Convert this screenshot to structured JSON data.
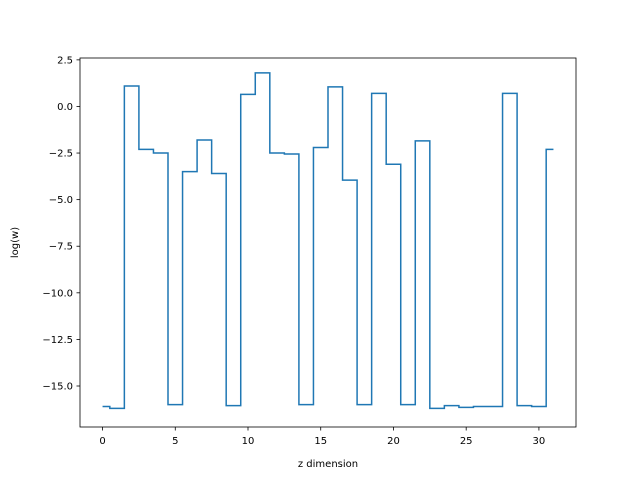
{
  "chart_data": {
    "type": "line",
    "drawstyle": "steps-mid",
    "xlabel": "z dimension",
    "ylabel": "log(w)",
    "xlim": [
      -1.55,
      32.55
    ],
    "ylim": [
      -17.2,
      2.6
    ],
    "xticks": [
      0,
      5,
      10,
      15,
      20,
      25,
      30
    ],
    "xtick_labels": [
      "0",
      "5",
      "10",
      "15",
      "20",
      "25",
      "30"
    ],
    "yticks": [
      2.5,
      0.0,
      -2.5,
      -5.0,
      -7.5,
      -10.0,
      -12.5,
      -15.0
    ],
    "ytick_labels": [
      "2.5",
      "0.0",
      "−2.5",
      "−5.0",
      "−7.5",
      "−10.0",
      "−12.5",
      "−15.0"
    ],
    "grid": false,
    "color": "#1f77b4",
    "series": [
      {
        "x": [
          0,
          1,
          2,
          3,
          4,
          5,
          6,
          7,
          8,
          9,
          10,
          11,
          12,
          13,
          14,
          15,
          16,
          17,
          18,
          19,
          20,
          21,
          22,
          23,
          24,
          25,
          26,
          27,
          28,
          29,
          30,
          31
        ],
        "values": [
          -16.1,
          -16.2,
          1.1,
          -2.3,
          -2.5,
          -16.0,
          -3.5,
          -1.8,
          -3.6,
          -16.05,
          0.65,
          1.8,
          -2.5,
          -2.55,
          -16.0,
          -2.2,
          1.05,
          -3.95,
          -16.0,
          0.7,
          -3.1,
          -16.0,
          -1.85,
          -16.2,
          -16.05,
          -16.15,
          -16.1,
          -16.1,
          0.7,
          -16.05,
          -16.1,
          -2.3
        ]
      }
    ]
  }
}
